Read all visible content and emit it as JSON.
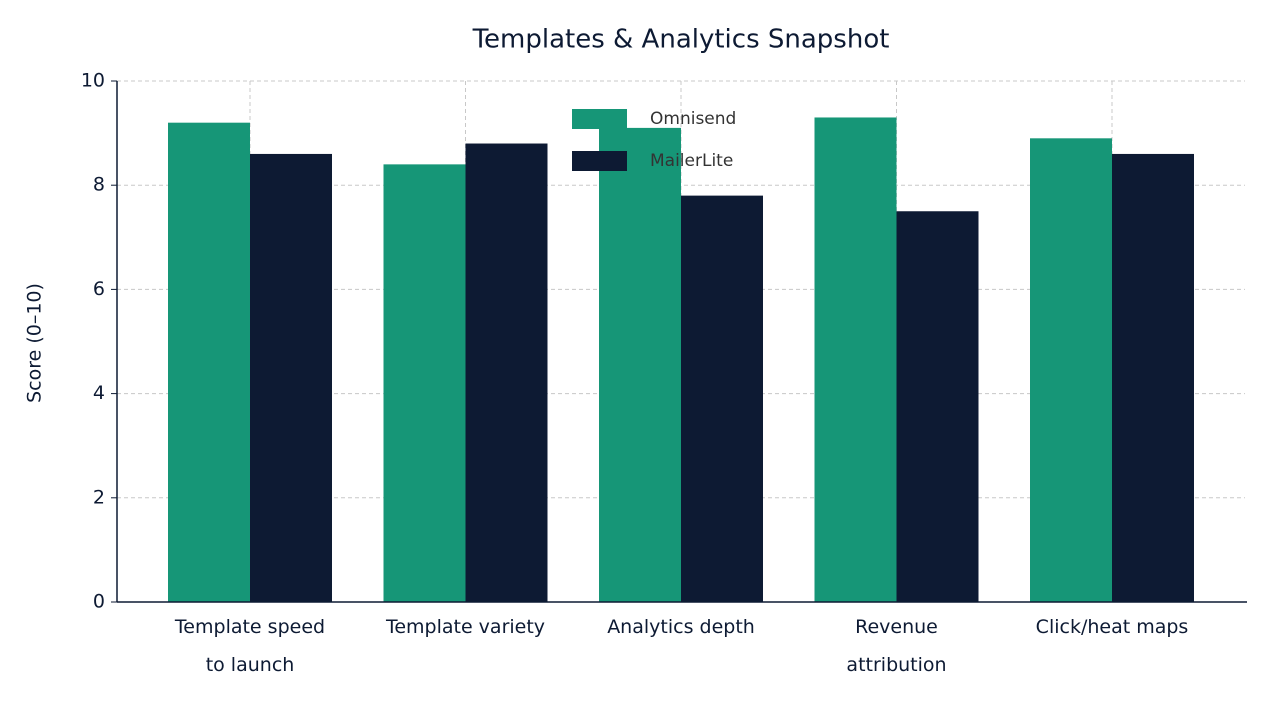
{
  "chart_data": {
    "type": "bar",
    "title": "Templates & Analytics Snapshot",
    "y_label": "Score (0–10)",
    "categories": [
      "Template speed\nto launch",
      "Template variety",
      "Analytics depth",
      "Revenue\nattribution",
      "Click/heat maps"
    ],
    "series": [
      {
        "name": "Omnisend",
        "color": "#169677",
        "values": [
          9.2,
          8.4,
          9.1,
          9.3,
          8.9
        ]
      },
      {
        "name": "MailerLite",
        "color": "#0d1a33",
        "values": [
          8.6,
          8.8,
          7.8,
          7.5,
          8.6
        ]
      }
    ],
    "ylim": [
      0,
      10
    ],
    "yticks": [
      0,
      2,
      4,
      6,
      8,
      10
    ],
    "grid": true,
    "legend": "upper center"
  }
}
